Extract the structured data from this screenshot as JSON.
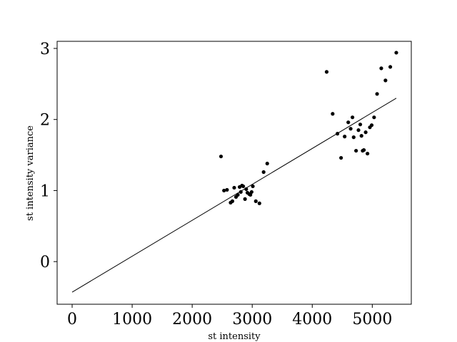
{
  "chart_data": {
    "type": "scatter",
    "xlabel": "st intensity",
    "ylabel": "st intensity variance",
    "xlim": [
      -250,
      5650
    ],
    "ylim": [
      -0.6,
      3.1
    ],
    "xticks": [
      0,
      1000,
      2000,
      3000,
      4000,
      5000
    ],
    "yticks": [
      0,
      1,
      2,
      3
    ],
    "xtick_labels": [
      "0",
      "1000",
      "2000",
      "3000",
      "4000",
      "5000"
    ],
    "ytick_labels": [
      "0",
      "1",
      "2",
      "3"
    ],
    "grid": false,
    "point_color": "#000000",
    "series": [
      {
        "type": "scatter",
        "points": [
          [
            2480,
            1.48
          ],
          [
            2530,
            1.0
          ],
          [
            2580,
            1.01
          ],
          [
            2640,
            0.83
          ],
          [
            2670,
            0.85
          ],
          [
            2700,
            1.04
          ],
          [
            2730,
            0.91
          ],
          [
            2760,
            0.94
          ],
          [
            2790,
            1.05
          ],
          [
            2810,
            0.98
          ],
          [
            2830,
            1.07
          ],
          [
            2850,
            1.06
          ],
          [
            2880,
            0.88
          ],
          [
            2900,
            1.02
          ],
          [
            2920,
            0.97
          ],
          [
            2950,
            0.95
          ],
          [
            2970,
            0.94
          ],
          [
            2990,
            0.98
          ],
          [
            3010,
            1.06
          ],
          [
            3060,
            0.85
          ],
          [
            3120,
            0.82
          ],
          [
            3190,
            1.26
          ],
          [
            3250,
            1.38
          ],
          [
            4240,
            2.67
          ],
          [
            4340,
            2.08
          ],
          [
            4420,
            1.8
          ],
          [
            4480,
            1.46
          ],
          [
            4540,
            1.76
          ],
          [
            4600,
            1.96
          ],
          [
            4640,
            1.87
          ],
          [
            4670,
            2.03
          ],
          [
            4690,
            1.75
          ],
          [
            4730,
            1.56
          ],
          [
            4770,
            1.85
          ],
          [
            4800,
            1.93
          ],
          [
            4820,
            1.77
          ],
          [
            4840,
            1.56
          ],
          [
            4860,
            1.57
          ],
          [
            4890,
            1.82
          ],
          [
            4920,
            1.52
          ],
          [
            4960,
            1.89
          ],
          [
            4990,
            1.92
          ],
          [
            5030,
            2.03
          ],
          [
            5080,
            2.36
          ],
          [
            5150,
            2.72
          ],
          [
            5220,
            2.55
          ],
          [
            5300,
            2.74
          ],
          [
            5400,
            2.94
          ]
        ]
      },
      {
        "type": "line",
        "points": [
          [
            0,
            -0.43
          ],
          [
            5400,
            2.3
          ]
        ],
        "color": "#000000"
      }
    ]
  }
}
